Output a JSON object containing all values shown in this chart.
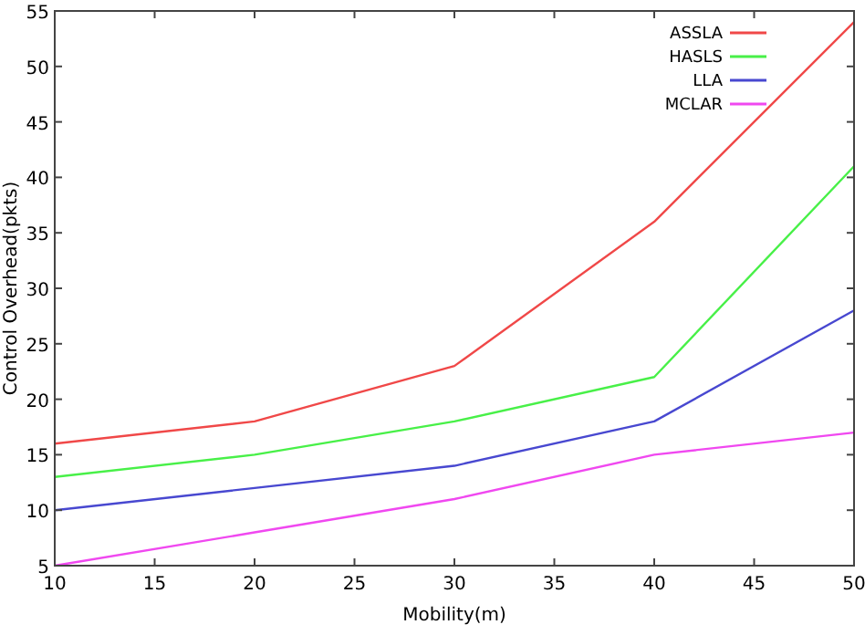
{
  "chart_data": {
    "type": "line",
    "xlabel": "Mobility(m)",
    "ylabel": "Control Overhead(pkts)",
    "x": [
      10,
      20,
      30,
      40,
      50
    ],
    "series": [
      {
        "name": "ASSLA",
        "color": "#f04848",
        "values": [
          16,
          18,
          23,
          36,
          54
        ]
      },
      {
        "name": "HASLS",
        "color": "#48f048",
        "values": [
          13,
          15,
          18,
          22,
          41
        ]
      },
      {
        "name": "LLA",
        "color": "#4848d0",
        "values": [
          10,
          12,
          14,
          18,
          28
        ]
      },
      {
        "name": "MCLAR",
        "color": "#f048f0",
        "values": [
          5,
          8,
          11,
          15,
          17
        ]
      }
    ],
    "xlim": [
      10,
      50
    ],
    "xticks": [
      10,
      15,
      20,
      25,
      30,
      35,
      40,
      45,
      50
    ],
    "ylim": [
      5,
      55
    ],
    "yticks": [
      5,
      10,
      15,
      20,
      25,
      30,
      35,
      40,
      45,
      50,
      55
    ],
    "legend": "top right",
    "marker": "none",
    "line_style": "solid",
    "grid": false
  }
}
